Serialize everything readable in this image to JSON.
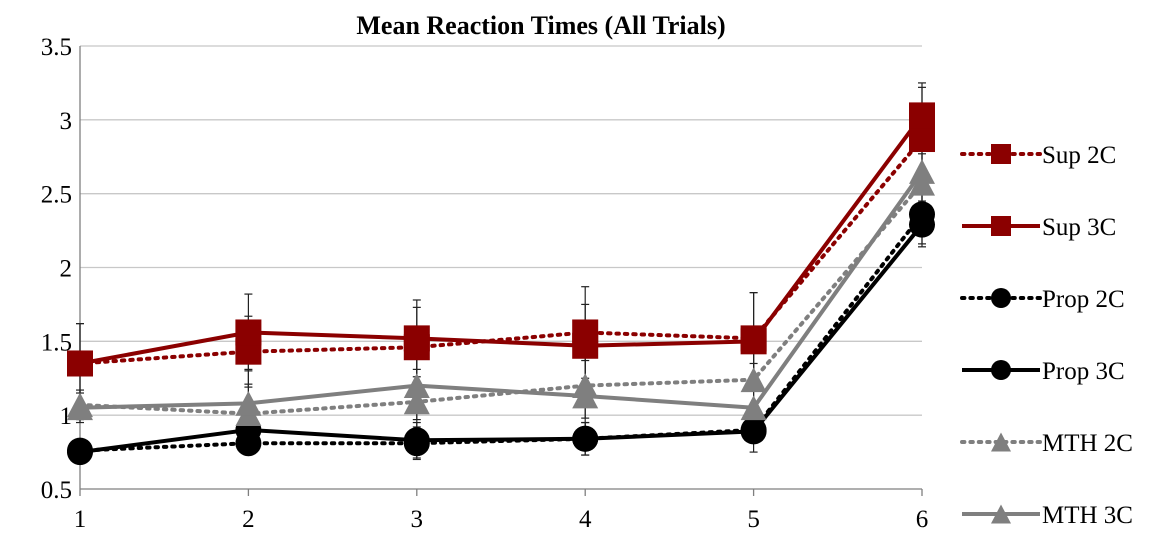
{
  "chart_data": {
    "type": "line",
    "title": "Mean Reaction Times (All Trials)",
    "xlabel": "",
    "ylabel": "",
    "x": [
      1,
      2,
      3,
      4,
      5,
      6
    ],
    "x_tick_labels": [
      "1",
      "2",
      "3",
      "4",
      "5",
      "6"
    ],
    "ylim": [
      0.5,
      3.5
    ],
    "y_ticks": [
      0.5,
      1,
      1.5,
      2,
      2.5,
      3,
      3.5
    ],
    "y_tick_labels": [
      "0.5",
      "1",
      "1.5",
      "2",
      "2.5",
      "3",
      "3.5"
    ],
    "grid": "horizontal",
    "legend_position": "right",
    "series": [
      {
        "name": "Sup 2C",
        "values": [
          1.35,
          1.43,
          1.46,
          1.56,
          1.52,
          2.87
        ],
        "errors": [
          0.27,
          0.24,
          0.27,
          0.31,
          0.31,
          0.35
        ],
        "color": "#8b0000",
        "dash": "dotted",
        "marker": "square"
      },
      {
        "name": "Sup 3C",
        "values": [
          1.35,
          1.56,
          1.52,
          1.47,
          1.5,
          3.03
        ],
        "errors": [
          0.27,
          0.26,
          0.26,
          0.28,
          0.33,
          0.22
        ],
        "color": "#8b0000",
        "dash": "solid",
        "marker": "square"
      },
      {
        "name": "Prop 2C",
        "values": [
          0.76,
          0.81,
          0.81,
          0.84,
          0.9,
          2.36
        ],
        "errors": [
          0.03,
          0.08,
          0.11,
          0.11,
          0.08,
          0.2
        ],
        "color": "#000000",
        "dash": "dotted",
        "marker": "circle"
      },
      {
        "name": "Prop 3C",
        "values": [
          0.75,
          0.9,
          0.83,
          0.84,
          0.89,
          2.29
        ],
        "errors": [
          0.03,
          0.13,
          0.12,
          0.11,
          0.08,
          0.15
        ],
        "color": "#000000",
        "dash": "solid",
        "marker": "circle"
      },
      {
        "name": "MTH 2C",
        "values": [
          1.07,
          1.01,
          1.09,
          1.2,
          1.24,
          2.57
        ],
        "errors": [
          0.1,
          0.2,
          0.22,
          0.22,
          0.3,
          0.2
        ],
        "color": "#7f7f7f",
        "dash": "dotted",
        "marker": "triangle"
      },
      {
        "name": "MTH 3C",
        "values": [
          1.05,
          1.08,
          1.2,
          1.13,
          1.05,
          2.65
        ],
        "errors": [
          0.1,
          0.23,
          0.23,
          0.24,
          0.3,
          0.2
        ],
        "color": "#7f7f7f",
        "dash": "solid",
        "marker": "triangle"
      }
    ]
  }
}
